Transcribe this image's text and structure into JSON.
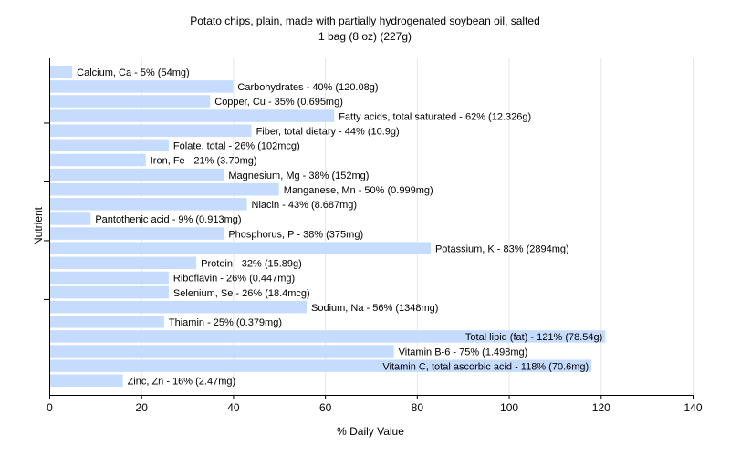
{
  "chart_data": {
    "type": "bar",
    "orientation": "horizontal",
    "title": "Potato chips, plain, made with partially hydrogenated soybean oil, salted",
    "subtitle": "1 bag (8 oz) (227g)",
    "xlabel": "% Daily Value",
    "ylabel": "Nutrient",
    "xlim": [
      0,
      140
    ],
    "xticks": [
      0,
      20,
      40,
      60,
      80,
      100,
      120,
      140
    ],
    "grid": true,
    "bar_color": "#c6dcff",
    "categories": [
      "Calcium, Ca",
      "Carbohydrates",
      "Copper, Cu",
      "Fatty acids, total saturated",
      "Fiber, total dietary",
      "Folate, total",
      "Iron, Fe",
      "Magnesium, Mg",
      "Manganese, Mn",
      "Niacin",
      "Pantothenic acid",
      "Phosphorus, P",
      "Potassium, K",
      "Protein",
      "Riboflavin",
      "Selenium, Se",
      "Sodium, Na",
      "Thiamin",
      "Total lipid (fat)",
      "Vitamin B-6",
      "Vitamin C, total ascorbic acid",
      "Zinc, Zn"
    ],
    "values": [
      5,
      40,
      35,
      62,
      44,
      26,
      21,
      38,
      50,
      43,
      9,
      38,
      83,
      32,
      26,
      26,
      56,
      25,
      121,
      75,
      118,
      16
    ],
    "labels": [
      "Calcium, Ca - 5% (54mg)",
      "Carbohydrates - 40% (120.08g)",
      "Copper, Cu - 35% (0.695mg)",
      "Fatty acids, total saturated - 62% (12.326g)",
      "Fiber, total dietary - 44% (10.9g)",
      "Folate, total - 26% (102mcg)",
      "Iron, Fe - 21% (3.70mg)",
      "Magnesium, Mg - 38% (152mg)",
      "Manganese, Mn - 50% (0.999mg)",
      "Niacin - 43% (8.687mg)",
      "Pantothenic acid - 9% (0.913mg)",
      "Phosphorus, P - 38% (375mg)",
      "Potassium, K - 83% (2894mg)",
      "Protein - 32% (15.89g)",
      "Riboflavin - 26% (0.447mg)",
      "Selenium, Se - 26% (18.4mcg)",
      "Sodium, Na - 56% (1348mg)",
      "Thiamin - 25% (0.379mg)",
      "Total lipid (fat) - 121% (78.54g)",
      "Vitamin B-6 - 75% (1.498mg)",
      "Vitamin C, total ascorbic acid - 118% (70.6mg)",
      "Zinc, Zn - 16% (2.47mg)"
    ]
  }
}
